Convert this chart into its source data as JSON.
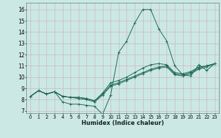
{
  "title": "",
  "xlabel": "Humidex (Indice chaleur)",
  "bg_color": "#cce8e4",
  "grid_color": "#c8b8b8",
  "line_color": "#1a6655",
  "xlim": [
    -0.5,
    23.5
  ],
  "ylim": [
    6.8,
    16.6
  ],
  "xticks": [
    0,
    1,
    2,
    3,
    4,
    5,
    6,
    7,
    8,
    9,
    10,
    11,
    12,
    13,
    14,
    15,
    16,
    17,
    18,
    19,
    20,
    21,
    22,
    23
  ],
  "yticks": [
    7,
    8,
    9,
    10,
    11,
    12,
    13,
    14,
    15,
    16
  ],
  "series": [
    [
      8.3,
      8.8,
      8.5,
      8.7,
      7.8,
      7.6,
      7.6,
      7.5,
      7.4,
      6.7,
      8.4,
      12.2,
      13.2,
      14.8,
      16.0,
      16.0,
      14.3,
      13.2,
      11.0,
      10.2,
      10.1,
      11.1,
      10.6,
      11.2
    ],
    [
      8.3,
      8.8,
      8.5,
      8.7,
      8.3,
      8.2,
      8.1,
      8.0,
      7.8,
      8.4,
      9.2,
      9.4,
      9.7,
      10.0,
      10.3,
      10.6,
      10.8,
      10.9,
      10.2,
      10.1,
      10.3,
      10.7,
      10.9,
      11.2
    ],
    [
      8.3,
      8.8,
      8.5,
      8.7,
      8.3,
      8.2,
      8.2,
      8.1,
      7.9,
      8.5,
      9.3,
      9.5,
      9.8,
      10.1,
      10.4,
      10.7,
      10.9,
      11.0,
      10.3,
      10.2,
      10.4,
      10.8,
      11.0,
      11.2
    ],
    [
      8.3,
      8.8,
      8.5,
      8.7,
      8.3,
      8.2,
      8.2,
      8.1,
      7.9,
      8.6,
      9.5,
      9.7,
      10.0,
      10.4,
      10.8,
      11.1,
      11.2,
      11.1,
      10.4,
      10.3,
      10.5,
      10.9,
      11.0,
      11.2
    ]
  ],
  "xlabel_fontsize": 6.0,
  "tick_fontsize": 4.8,
  "ytick_fontsize": 5.5
}
